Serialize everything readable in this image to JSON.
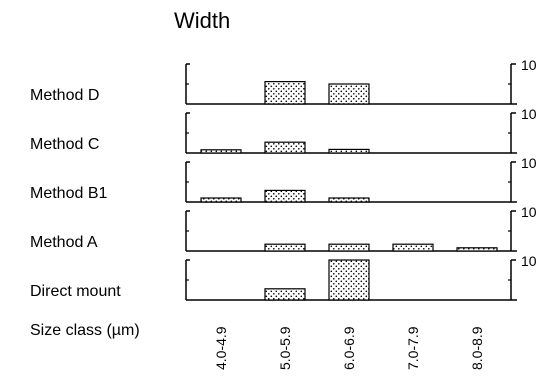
{
  "chart_data": {
    "type": "bar",
    "title": "Width",
    "xlabel": "Size class (µm)",
    "categories": [
      "4.0-4.9",
      "5.0-5.9",
      "6.0-6.9",
      "7.0-7.9",
      "8.0-8.9"
    ],
    "right_axis_label": "10",
    "ylim": [
      0,
      10
    ],
    "bar_fill": "dotted stipple",
    "colors": {
      "bar_dots": "#000000",
      "bar_bg": "#ffffff",
      "axis": "#000000"
    },
    "series": [
      {
        "name": "Method D",
        "values": [
          0,
          5.6,
          5.0,
          0,
          0
        ]
      },
      {
        "name": "Method C",
        "values": [
          0.8,
          2.7,
          0.9,
          0,
          0
        ]
      },
      {
        "name": "Method B1",
        "values": [
          1.0,
          2.9,
          1.0,
          0,
          0
        ]
      },
      {
        "name": "Method A",
        "values": [
          0,
          1.7,
          1.7,
          1.7,
          0.8
        ]
      },
      {
        "name": "Direct mount",
        "values": [
          0,
          2.8,
          10.0,
          0,
          0
        ]
      }
    ]
  }
}
